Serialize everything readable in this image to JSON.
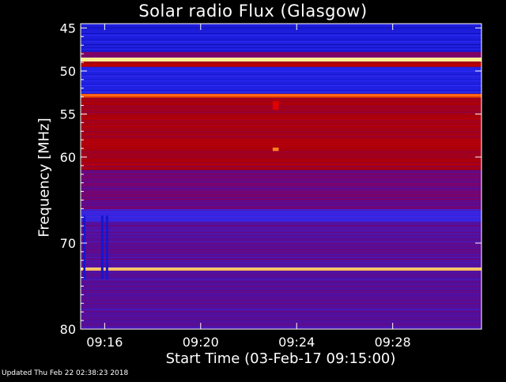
{
  "chart_data": {
    "type": "heatmap",
    "title": "Solar radio Flux (Glasgow)",
    "xlabel": "Start Time (03-Feb-17 09:15:00)",
    "ylabel": "Frequency [MHz]",
    "x_unit": "minutes after 09:15:00",
    "xlim": [
      0,
      16.7
    ],
    "ylim": [
      80,
      44.5
    ],
    "y_scale": "inverted (low frequency at top)",
    "x_ticks": [
      {
        "value": 1,
        "label": "09:16"
      },
      {
        "value": 5,
        "label": "09:20"
      },
      {
        "value": 9,
        "label": "09:24"
      },
      {
        "value": 13,
        "label": "09:28"
      }
    ],
    "y_ticks": [
      {
        "value": 45,
        "label": "45"
      },
      {
        "value": 50,
        "label": "50"
      },
      {
        "value": 55,
        "label": "55"
      },
      {
        "value": 60,
        "label": "60"
      },
      {
        "value": 70,
        "label": "70"
      },
      {
        "value": 80,
        "label": "80"
      }
    ],
    "colormap": [
      "#000040",
      "#1010c0",
      "#3030ff",
      "#5010a0",
      "#800060",
      "#b00000",
      "#e00000",
      "#ff6000",
      "#ffffa0"
    ],
    "intensity_bands": [
      {
        "f0": 44.5,
        "f1": 47.8,
        "level": 0.18
      },
      {
        "f0": 47.8,
        "f1": 48.4,
        "level": 0.5
      },
      {
        "f0": 48.4,
        "f1": 48.9,
        "level": 0.98
      },
      {
        "f0": 48.9,
        "f1": 49.5,
        "level": 0.62
      },
      {
        "f0": 49.5,
        "f1": 52.6,
        "level": 0.2
      },
      {
        "f0": 52.6,
        "f1": 53.1,
        "level": 0.85
      },
      {
        "f0": 53.1,
        "f1": 61.5,
        "level": 0.6
      },
      {
        "f0": 61.5,
        "f1": 66.0,
        "level": 0.45
      },
      {
        "f0": 66.0,
        "f1": 67.5,
        "level": 0.3
      },
      {
        "f0": 67.5,
        "f1": 72.8,
        "level": 0.4
      },
      {
        "f0": 72.8,
        "f1": 73.2,
        "level": 0.95
      },
      {
        "f0": 73.2,
        "f1": 80,
        "level": 0.38
      }
    ],
    "bursts": [
      {
        "t0": 0.1,
        "t1": 0.2,
        "f0": 66.8,
        "f1": 74.2,
        "level": 0.15
      },
      {
        "t0": 0.85,
        "t1": 0.95,
        "f0": 66.8,
        "f1": 74.2,
        "level": 0.15
      },
      {
        "t0": 1.05,
        "t1": 1.15,
        "f0": 66.8,
        "f1": 74.2,
        "level": 0.15
      },
      {
        "t0": 8.0,
        "t1": 8.25,
        "f0": 53.5,
        "f1": 54.5,
        "level": 0.75
      },
      {
        "t0": 8.0,
        "t1": 8.25,
        "f0": 58.9,
        "f1": 59.3,
        "level": 0.9
      }
    ]
  },
  "footer": {
    "updated": "Updated Thu Feb 22 02:38:23 2018"
  }
}
